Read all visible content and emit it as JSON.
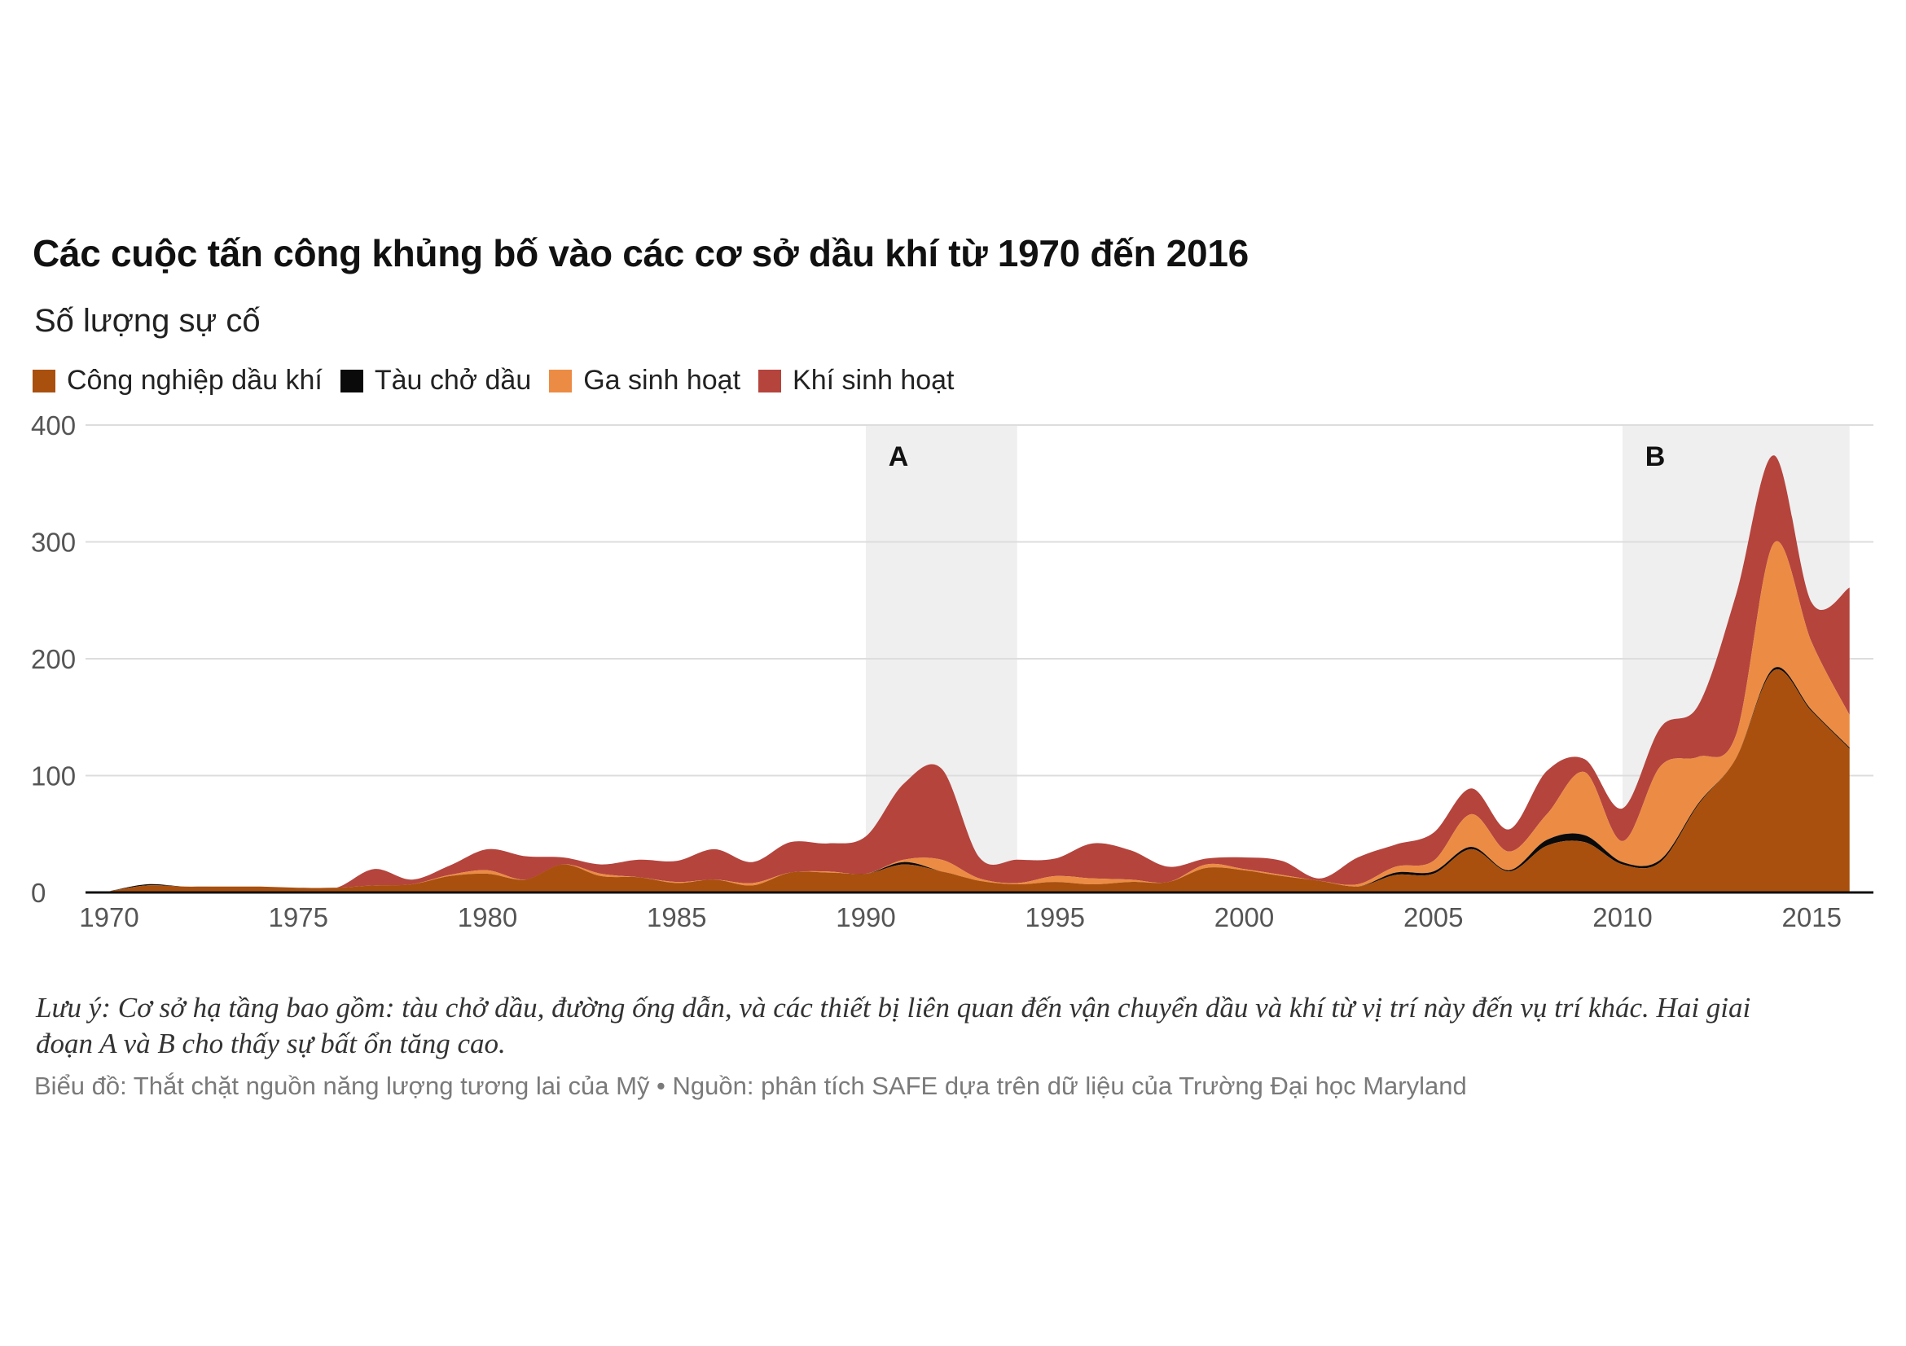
{
  "colors": {
    "oil_industry": "#a9500f",
    "tanker": "#0a0a0a",
    "gas_household": "#ec8c44",
    "gas_natural": "#b5443d",
    "grid": "#dddddd",
    "shade": "#efefef",
    "axis_text": "#555555"
  },
  "chart_data": {
    "type": "area",
    "stacked": true,
    "title": "Các cuộc tấn công khủng bố vào các cơ sở dầu khí từ 1970 đến 2016",
    "ylabel": "Số lượng sự cố",
    "xlim": [
      1970,
      2016.8
    ],
    "ylim": [
      0,
      400
    ],
    "yticks": [
      0,
      100,
      200,
      300,
      400
    ],
    "xticks": [
      1970,
      1975,
      1980,
      1985,
      1990,
      1995,
      2000,
      2005,
      2010,
      2015
    ],
    "x": [
      1970,
      1971,
      1972,
      1973,
      1974,
      1975,
      1976,
      1977,
      1978,
      1979,
      1980,
      1981,
      1982,
      1983,
      1984,
      1985,
      1986,
      1987,
      1988,
      1989,
      1990,
      1991,
      1992,
      1993,
      1994,
      1995,
      1996,
      1997,
      1998,
      1999,
      2000,
      2001,
      2002,
      2003,
      2004,
      2005,
      2006,
      2007,
      2008,
      2009,
      2010,
      2011,
      2012,
      2013,
      2014,
      2015,
      2016
    ],
    "series": [
      {
        "name": "Công nghiệp dầu khí",
        "color_key": "oil_industry",
        "values": [
          1,
          6,
          5,
          5,
          5,
          4,
          4,
          6,
          7,
          14,
          16,
          11,
          24,
          14,
          13,
          8,
          11,
          6,
          17,
          17,
          16,
          24,
          18,
          10,
          7,
          9,
          7,
          9,
          9,
          21,
          19,
          14,
          10,
          5,
          15,
          16,
          37,
          18,
          40,
          43,
          24,
          26,
          75,
          115,
          190,
          155,
          123
        ]
      },
      {
        "name": "Tàu chở dầu",
        "color_key": "tanker",
        "values": [
          0,
          1,
          0,
          0,
          0,
          0,
          0,
          0,
          0,
          0,
          0,
          0,
          0,
          0,
          0,
          0,
          0,
          0,
          0,
          0,
          0,
          2,
          0,
          0,
          0,
          0,
          0,
          0,
          0,
          0,
          0,
          0,
          0,
          0,
          2,
          2,
          2,
          1,
          5,
          6,
          2,
          2,
          1,
          0,
          2,
          1,
          1
        ]
      },
      {
        "name": "Ga sinh hoạt",
        "color_key": "gas_household",
        "values": [
          0,
          0,
          0,
          0,
          0,
          0,
          0,
          0,
          0,
          1,
          3,
          0,
          0,
          2,
          0,
          1,
          0,
          2,
          0,
          1,
          0,
          2,
          10,
          2,
          1,
          5,
          5,
          2,
          0,
          3,
          1,
          1,
          0,
          2,
          5,
          9,
          28,
          16,
          22,
          54,
          18,
          80,
          40,
          20,
          107,
          58,
          28
        ]
      },
      {
        "name": "Khí sinh hoạt",
        "color_key": "gas_natural",
        "values": [
          0,
          0,
          0,
          0,
          0,
          0,
          0,
          14,
          4,
          8,
          18,
          20,
          6,
          8,
          15,
          18,
          26,
          18,
          26,
          24,
          32,
          65,
          78,
          18,
          20,
          15,
          30,
          25,
          13,
          5,
          10,
          12,
          2,
          23,
          19,
          24,
          22,
          19,
          37,
          11,
          28,
          33,
          44,
          120,
          75,
          34,
          109
        ]
      }
    ],
    "highlights": [
      {
        "label": "A",
        "from": 1990,
        "to": 1994
      },
      {
        "label": "B",
        "from": 2010,
        "to": 2016
      }
    ]
  },
  "legend_labels": [
    "Công nghiệp dầu khí",
    "Tàu chở dầu",
    "Ga sinh hoạt",
    "Khí sinh hoạt"
  ],
  "note": "Lưu ý: Cơ sở hạ tầng bao gồm: tàu chở dầu, đường ống dẫn, và các thiết bị liên quan đến vận chuyển dầu và khí từ vị trí này đến vụ trí khác. Hai giai đoạn A và B cho thấy sự bất ổn tăng cao.",
  "source": "Biểu đồ: Thắt chặt nguồn năng lượng tương lai của Mỹ • Nguồn: phân tích SAFE dựa trên dữ liệu của Trường Đại học Maryland"
}
